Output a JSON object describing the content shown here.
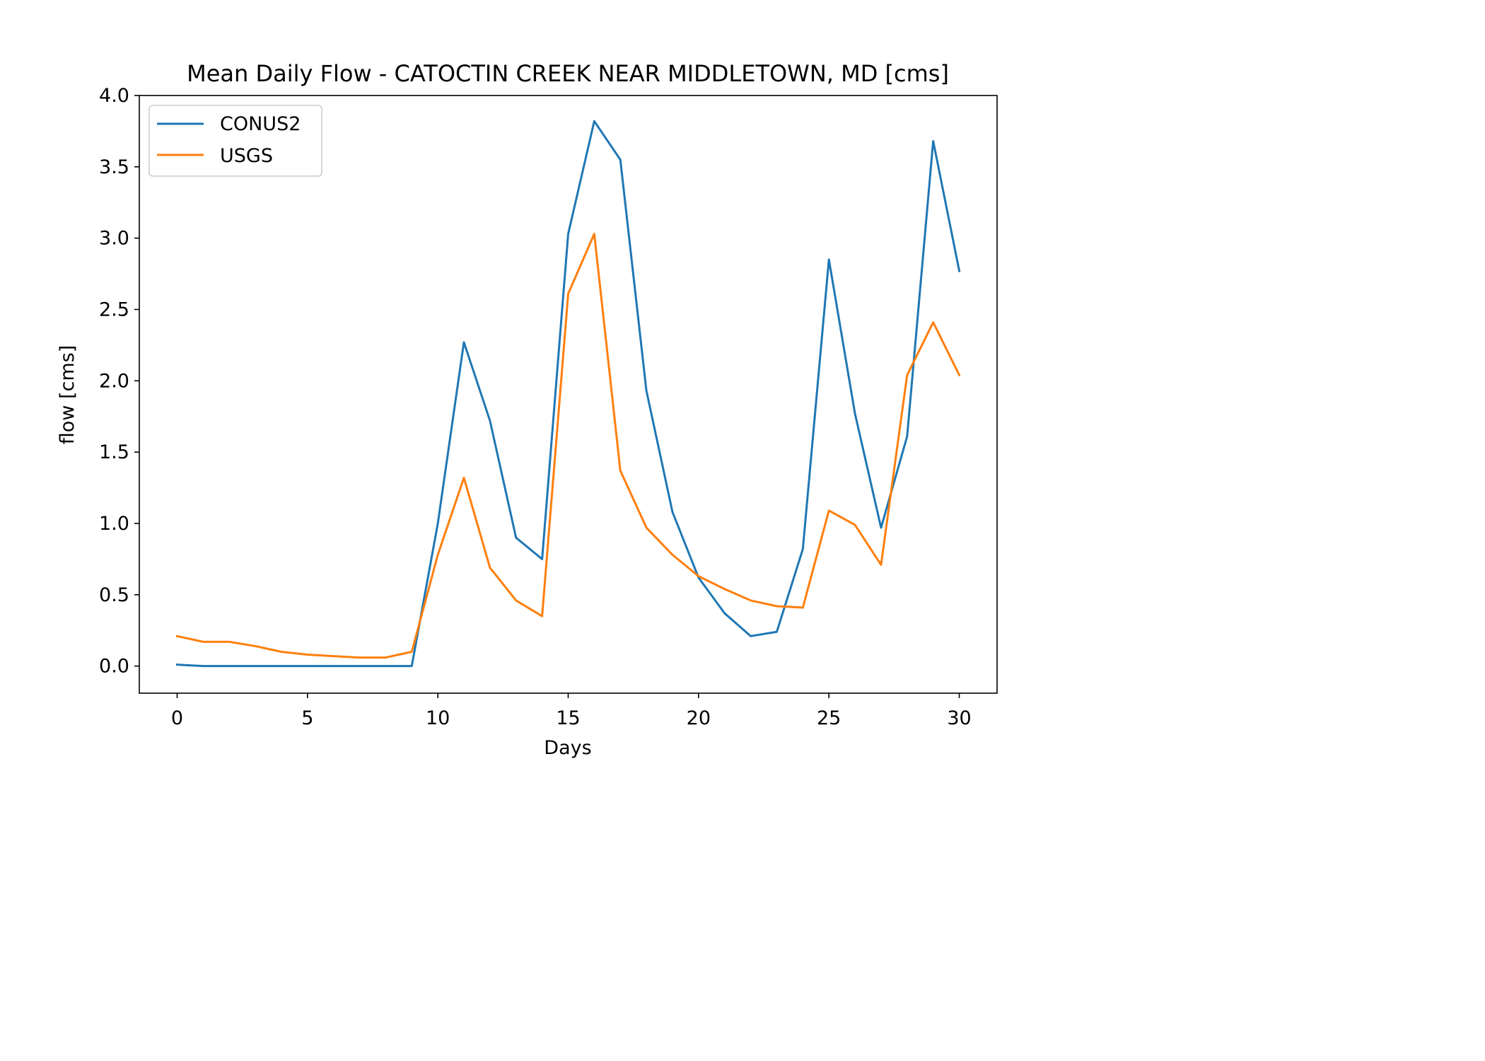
{
  "chart_data": {
    "type": "line",
    "title": "Mean Daily Flow - CATOCTIN CREEK NEAR MIDDLETOWN, MD [cms]",
    "xlabel": "Days",
    "ylabel": "flow [cms]",
    "xlim": [
      -1.45,
      31.45
    ],
    "ylim": [
      -0.19,
      4.0
    ],
    "xticks": [
      0,
      5,
      10,
      15,
      20,
      25,
      30
    ],
    "yticks": [
      0.0,
      0.5,
      1.0,
      1.5,
      2.0,
      2.5,
      3.0,
      3.5,
      4.0
    ],
    "xtick_labels": [
      "0",
      "5",
      "10",
      "15",
      "20",
      "25",
      "30"
    ],
    "ytick_labels": [
      "0.0",
      "0.5",
      "1.0",
      "1.5",
      "2.0",
      "2.5",
      "3.0",
      "3.5",
      "4.0"
    ],
    "grid": false,
    "legend_position": "upper-left",
    "x": [
      0,
      1,
      2,
      3,
      4,
      5,
      6,
      7,
      8,
      9,
      10,
      11,
      12,
      13,
      14,
      15,
      16,
      17,
      18,
      19,
      20,
      21,
      22,
      23,
      24,
      25,
      26,
      27,
      28,
      29,
      30
    ],
    "series": [
      {
        "name": "CONUS2",
        "color": "#1f77b4",
        "values": [
          0.01,
          0.0,
          0.0,
          0.0,
          0.0,
          0.0,
          0.0,
          0.0,
          0.0,
          0.0,
          1.0,
          2.27,
          1.72,
          0.9,
          0.75,
          3.03,
          3.82,
          3.55,
          1.93,
          1.08,
          0.62,
          0.37,
          0.21,
          0.24,
          0.82,
          2.85,
          1.77,
          0.97,
          1.61,
          3.68,
          2.77
        ]
      },
      {
        "name": "USGS",
        "color": "#ff7f0e",
        "values": [
          0.21,
          0.17,
          0.17,
          0.14,
          0.1,
          0.08,
          0.07,
          0.06,
          0.06,
          0.1,
          0.78,
          1.32,
          0.69,
          0.46,
          0.35,
          2.61,
          3.03,
          1.37,
          0.97,
          0.78,
          0.63,
          0.54,
          0.46,
          0.42,
          0.41,
          1.09,
          0.99,
          0.71,
          2.04,
          2.41,
          2.04
        ]
      }
    ]
  }
}
